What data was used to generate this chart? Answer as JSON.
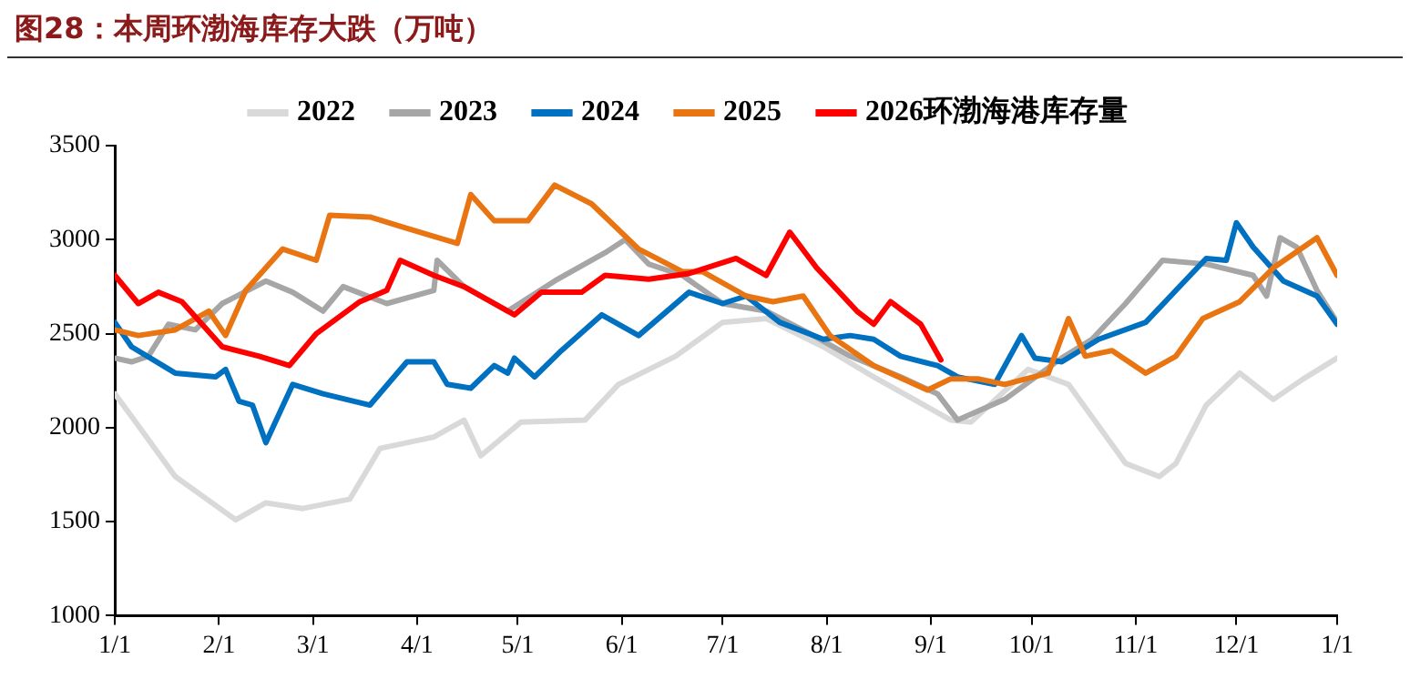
{
  "chart_data": {
    "type": "line",
    "title": "图28：本周环渤海库存大跌（万吨）",
    "xlim": [
      "--01-01",
      "--12-31"
    ],
    "xticks": [
      {
        "value": "--01-01",
        "label": "1/1"
      },
      {
        "value": "--02-01",
        "label": "2/1"
      },
      {
        "value": "--03-01",
        "label": "3/1"
      },
      {
        "value": "--04-01",
        "label": "4/1"
      },
      {
        "value": "--05-01",
        "label": "5/1"
      },
      {
        "value": "--06-01",
        "label": "6/1"
      },
      {
        "value": "--07-01",
        "label": "7/1"
      },
      {
        "value": "--08-01",
        "label": "8/1"
      },
      {
        "value": "--09-01",
        "label": "9/1"
      },
      {
        "value": "--10-01",
        "label": "10/1"
      },
      {
        "value": "--11-01",
        "label": "11/1"
      },
      {
        "value": "--12-01",
        "label": "12/1"
      },
      {
        "value": "--12-31",
        "label": "1/1"
      }
    ],
    "ylim": [
      1000,
      3500
    ],
    "yticks": [
      1000,
      1500,
      2000,
      2500,
      3000,
      3500
    ],
    "grid": false,
    "legend": "top",
    "marker": "none",
    "line_style": "solid",
    "series": [
      {
        "name": "2022",
        "color": "#d9d9d9",
        "x": [
          "--01-01",
          "--01-06",
          "--01-19",
          "--02-06",
          "--02-15",
          "--02-26",
          "--03-12",
          "--03-21",
          "--04-06",
          "--04-15",
          "--04-20",
          "--04-28",
          "--05-02",
          "--05-21",
          "--05-31",
          "--06-17",
          "--07-01",
          "--07-14",
          "--07-31",
          "--08-15",
          "--09-07",
          "--09-13",
          "--09-30",
          "--10-12",
          "--10-29",
          "--11-08",
          "--11-13",
          "--11-22",
          "--12-02",
          "--12-12",
          "--12-21",
          "--12-31"
        ],
        "values": [
          2180,
          2060,
          1740,
          1510,
          1600,
          1570,
          1620,
          1890,
          1950,
          2040,
          1850,
          1970,
          2030,
          2040,
          2230,
          2380,
          2560,
          2580,
          2430,
          2270,
          2040,
          2030,
          2310,
          2230,
          1810,
          1740,
          1810,
          2120,
          2290,
          2150,
          2260,
          2370
        ]
      },
      {
        "name": "2023",
        "color": "#a6a6a6",
        "x": [
          "--01-01",
          "--01-06",
          "--01-11",
          "--01-17",
          "--01-25",
          "--02-02",
          "--02-15",
          "--02-23",
          "--03-04",
          "--03-10",
          "--03-23",
          "--04-06",
          "--04-07",
          "--04-15",
          "--04-28",
          "--05-12",
          "--05-27",
          "--06-02",
          "--06-09",
          "--06-19",
          "--07-01",
          "--07-14",
          "--07-27",
          "--08-08",
          "--08-23",
          "--09-03",
          "--09-09",
          "--09-23",
          "--10-10",
          "--10-19",
          "--10-29",
          "--11-09",
          "--11-22",
          "--12-06",
          "--12-10",
          "--12-14",
          "--12-19",
          "--12-25",
          "--12-31"
        ],
        "values": [
          2370,
          2350,
          2380,
          2550,
          2520,
          2660,
          2780,
          2720,
          2620,
          2750,
          2660,
          2730,
          2890,
          2750,
          2620,
          2780,
          2930,
          3000,
          2870,
          2810,
          2660,
          2620,
          2500,
          2380,
          2270,
          2180,
          2040,
          2150,
          2370,
          2470,
          2660,
          2890,
          2870,
          2810,
          2700,
          3010,
          2960,
          2730,
          2560
        ]
      },
      {
        "name": "2024",
        "color": "#0070c0",
        "x": [
          "--01-01",
          "--01-06",
          "--01-19",
          "--01-31",
          "--02-03",
          "--02-07",
          "--02-11",
          "--02-15",
          "--02-23",
          "--03-04",
          "--03-18",
          "--03-29",
          "--04-06",
          "--04-10",
          "--04-17",
          "--04-24",
          "--04-28",
          "--04-30",
          "--05-06",
          "--05-14",
          "--05-26",
          "--06-06",
          "--06-21",
          "--07-01",
          "--07-08",
          "--07-18",
          "--07-31",
          "--08-08",
          "--08-15",
          "--08-23",
          "--09-03",
          "--09-09",
          "--09-20",
          "--09-28",
          "--10-02",
          "--10-10",
          "--10-21",
          "--11-04",
          "--11-13",
          "--11-22",
          "--11-28",
          "--12-01",
          "--12-06",
          "--12-15",
          "--12-25",
          "--12-31"
        ],
        "values": [
          2560,
          2430,
          2290,
          2270,
          2310,
          2140,
          2120,
          1920,
          2230,
          2180,
          2120,
          2350,
          2350,
          2230,
          2210,
          2330,
          2290,
          2370,
          2270,
          2410,
          2600,
          2490,
          2720,
          2660,
          2700,
          2560,
          2470,
          2490,
          2470,
          2380,
          2330,
          2270,
          2230,
          2490,
          2370,
          2350,
          2470,
          2560,
          2730,
          2900,
          2890,
          3090,
          2960,
          2780,
          2700,
          2550
        ]
      },
      {
        "name": "2025",
        "color": "#e87511",
        "x": [
          "--01-01",
          "--01-08",
          "--01-19",
          "--01-29",
          "--02-03",
          "--02-09",
          "--02-20",
          "--03-02",
          "--03-06",
          "--03-18",
          "--03-29",
          "--04-13",
          "--04-17",
          "--04-24",
          "--05-04",
          "--05-12",
          "--05-23",
          "--06-06",
          "--06-19",
          "--06-25",
          "--07-08",
          "--07-16",
          "--07-25",
          "--08-02",
          "--08-15",
          "--08-31",
          "--09-07",
          "--09-15",
          "--09-23",
          "--10-06",
          "--10-12",
          "--10-17",
          "--10-25",
          "--11-04",
          "--11-13",
          "--11-21",
          "--12-02",
          "--12-12",
          "--12-25",
          "--12-31"
        ],
        "values": [
          2520,
          2490,
          2520,
          2620,
          2490,
          2730,
          2950,
          2890,
          3130,
          3120,
          3060,
          2980,
          3240,
          3100,
          3100,
          3290,
          3190,
          2950,
          2830,
          2830,
          2700,
          2670,
          2700,
          2490,
          2330,
          2200,
          2260,
          2260,
          2230,
          2290,
          2580,
          2380,
          2410,
          2290,
          2380,
          2580,
          2670,
          2850,
          3010,
          2810
        ]
      },
      {
        "name": "2026环渤海港库存量",
        "color": "#ff0000",
        "x": [
          "--01-01",
          "--01-08",
          "--01-14",
          "--01-21",
          "--02-02",
          "--02-13",
          "--02-22",
          "--03-02",
          "--03-15",
          "--03-23",
          "--03-27",
          "--04-06",
          "--04-15",
          "--04-23",
          "--04-30",
          "--05-08",
          "--05-20",
          "--05-27",
          "--06-09",
          "--06-21",
          "--07-05",
          "--07-14",
          "--07-21",
          "--07-29",
          "--08-10",
          "--08-15",
          "--08-20",
          "--08-29",
          "--09-04"
        ],
        "values": [
          2810,
          2660,
          2720,
          2670,
          2430,
          2380,
          2330,
          2500,
          2670,
          2730,
          2890,
          2810,
          2750,
          2670,
          2600,
          2720,
          2720,
          2810,
          2790,
          2820,
          2900,
          2810,
          3040,
          2850,
          2620,
          2550,
          2670,
          2550,
          2360
        ]
      }
    ]
  }
}
